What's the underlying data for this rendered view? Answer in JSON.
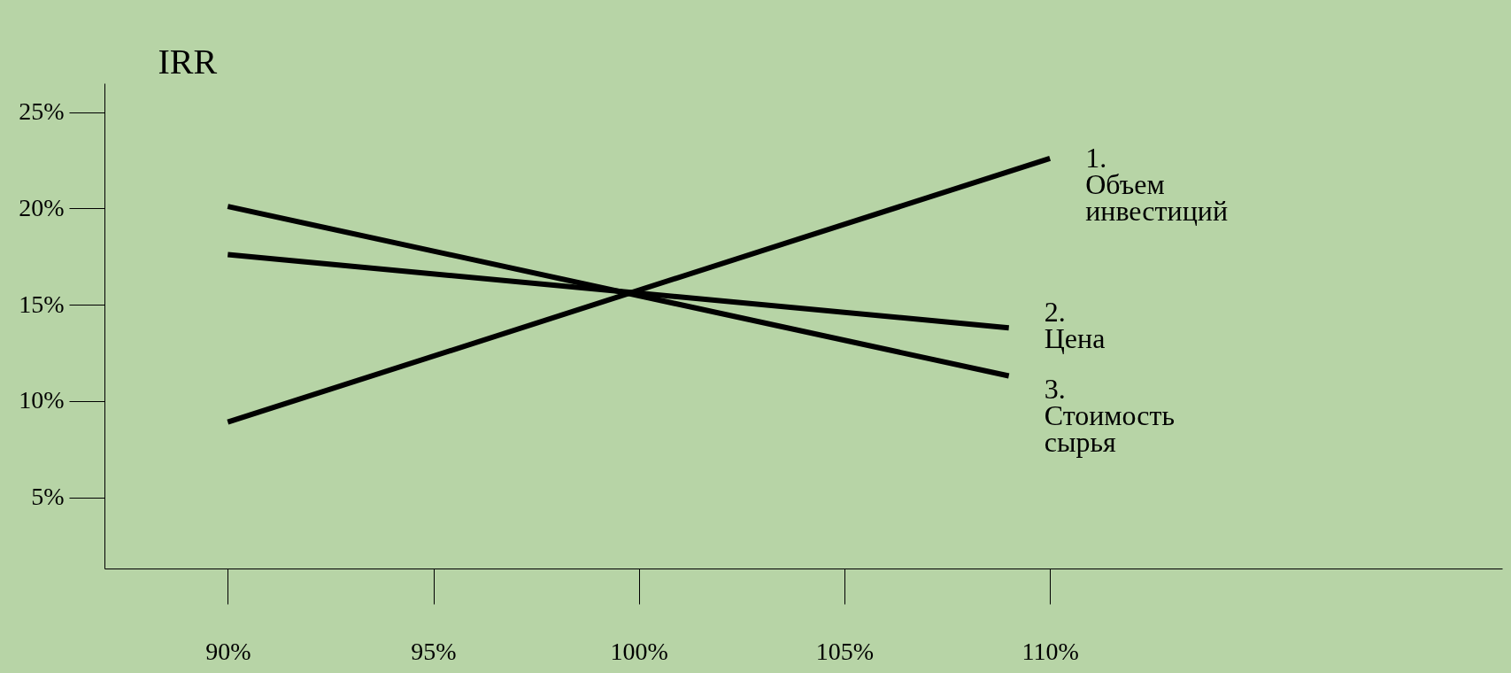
{
  "chart_data": {
    "type": "line",
    "ylabel": "IRR",
    "xlim": [
      87,
      121
    ],
    "ylim": [
      1.3,
      26.5
    ],
    "xticks": [
      {
        "value": 90,
        "label": "90%"
      },
      {
        "value": 95,
        "label": "95%"
      },
      {
        "value": 100,
        "label": "100%"
      },
      {
        "value": 105,
        "label": "105%"
      },
      {
        "value": 110,
        "label": "110%"
      }
    ],
    "yticks": [
      {
        "value": 5,
        "label": "5%"
      },
      {
        "value": 10,
        "label": "10%"
      },
      {
        "value": 15,
        "label": "15%"
      },
      {
        "value": 20,
        "label": "20%"
      },
      {
        "value": 25,
        "label": "25%"
      }
    ],
    "series": [
      {
        "name": "1. Объем инвестиций",
        "color": "#000000",
        "x": [
          90,
          110
        ],
        "values": [
          8.9,
          22.6
        ]
      },
      {
        "name": "2. Цена",
        "color": "#000000",
        "x": [
          90,
          109
        ],
        "values": [
          17.6,
          13.8
        ]
      },
      {
        "name": "3. Стоимость сырья",
        "color": "#000000",
        "x": [
          90,
          109
        ],
        "values": [
          20.1,
          11.3
        ]
      }
    ],
    "marker": "none",
    "line_style": "solid"
  }
}
